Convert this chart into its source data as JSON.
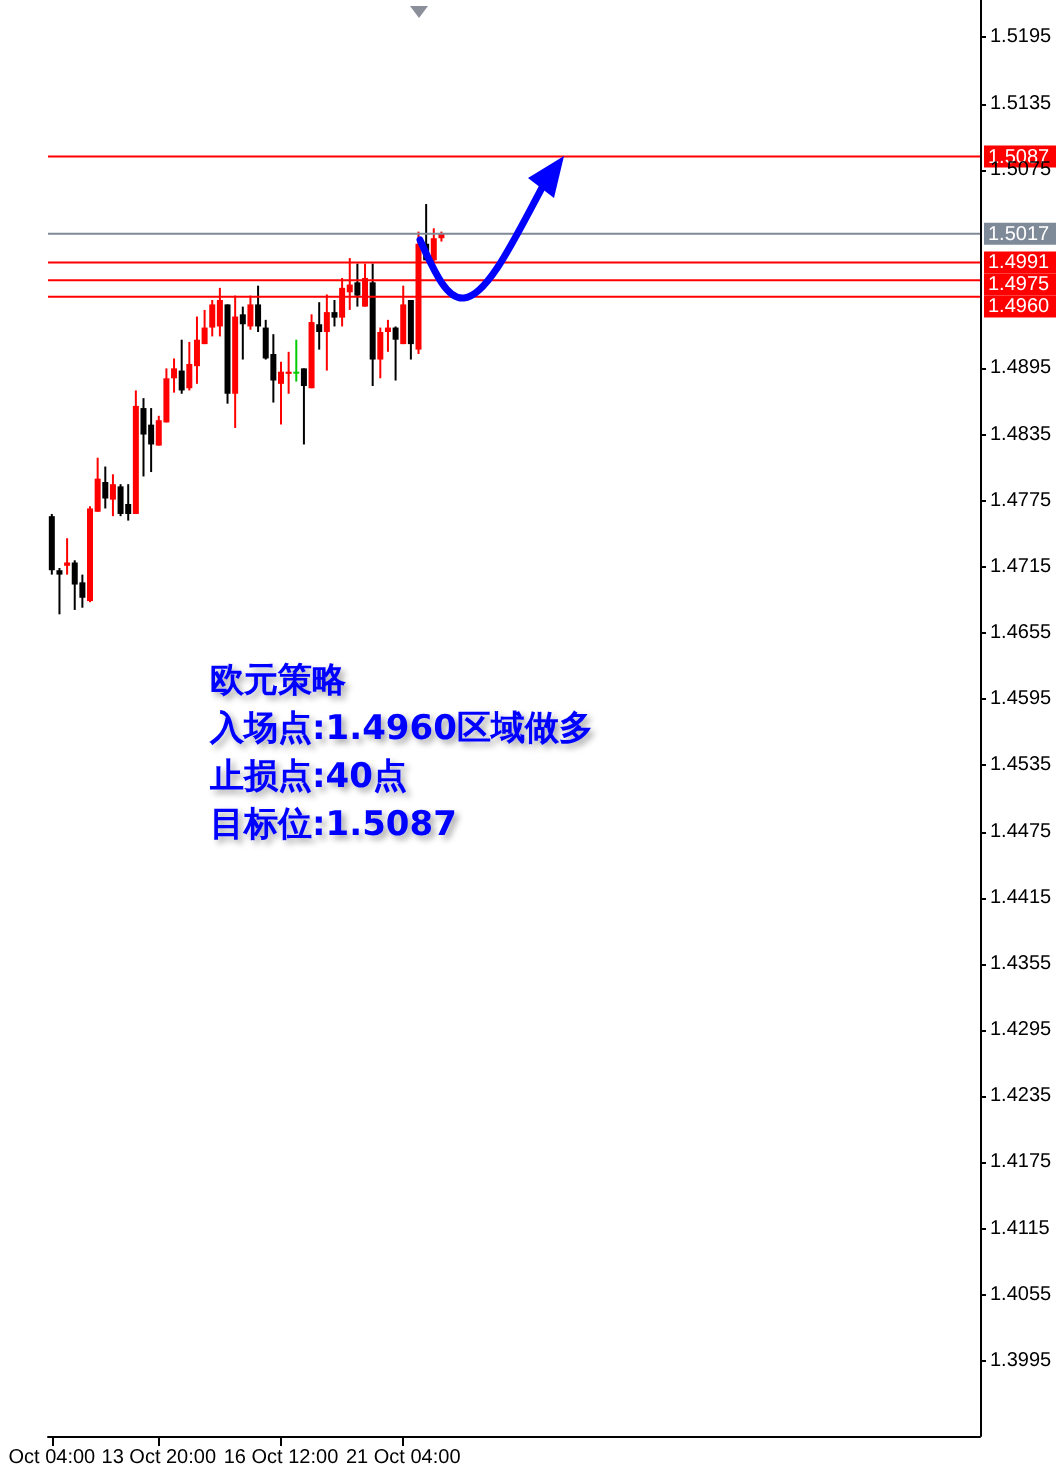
{
  "chart_data": {
    "type": "candlestick",
    "categories": [
      "Oct 04:00",
      null,
      null,
      null,
      null,
      null,
      null,
      null,
      null,
      null,
      null,
      null,
      null,
      null,
      "13 Oct 20:00",
      null,
      null,
      null,
      null,
      null,
      null,
      null,
      null,
      null,
      null,
      null,
      null,
      null,
      null,
      null,
      "16 Oct 12:00",
      null,
      null,
      null,
      null,
      null,
      null,
      null,
      null,
      null,
      null,
      null,
      null,
      null,
      null,
      null,
      "21 Oct 04:00",
      null,
      null,
      null,
      null,
      null,
      null,
      null,
      null,
      null,
      null,
      null,
      null,
      null,
      null,
      null,
      null,
      null,
      null,
      null,
      null,
      null,
      null,
      null,
      null,
      null,
      null,
      null,
      null,
      null,
      null,
      null,
      null,
      null,
      null,
      null,
      null,
      null,
      null,
      null,
      null,
      null,
      null,
      null,
      null,
      null,
      null,
      null,
      null,
      null,
      null,
      null,
      null,
      null,
      null,
      null,
      null,
      null,
      null,
      null,
      null,
      null,
      null,
      null,
      null,
      null,
      null,
      null,
      null,
      null,
      null,
      null,
      null,
      null,
      null,
      null
    ],
    "ohlc": [
      [
        1.4761,
        1.4763,
        1.4708,
        1.4712
      ],
      [
        1.4712,
        1.4714,
        1.4672,
        1.4708
      ],
      [
        1.4716,
        1.4741,
        1.4708,
        1.4719
      ],
      [
        1.4719,
        1.4721,
        1.4676,
        1.4699
      ],
      [
        1.4701,
        1.4708,
        1.4678,
        1.4687
      ],
      [
        1.4684,
        1.477,
        1.4683,
        1.4768
      ],
      [
        1.4765,
        1.4814,
        1.4765,
        1.4795
      ],
      [
        1.4792,
        1.4806,
        1.4768,
        1.4777
      ],
      [
        1.4776,
        1.4799,
        1.4761,
        1.479
      ],
      [
        1.4788,
        1.479,
        1.4761,
        1.4763
      ],
      [
        1.4772,
        1.479,
        1.4757,
        1.4763
      ],
      [
        1.4763,
        1.4875,
        1.4763,
        1.4861
      ],
      [
        1.4859,
        1.4868,
        1.4797,
        1.4835
      ],
      [
        1.4844,
        1.4859,
        1.4801,
        1.4826
      ],
      [
        1.4825,
        1.4852,
        1.4825,
        1.4848
      ],
      [
        1.4846,
        1.4895,
        1.4846,
        1.4886
      ],
      [
        1.4886,
        1.4904,
        1.4873,
        1.4895
      ],
      [
        1.4893,
        1.4921,
        1.4872,
        1.4875
      ],
      [
        1.4877,
        1.4919,
        1.4875,
        1.4899
      ],
      [
        1.4897,
        1.4942,
        1.4881,
        1.4921
      ],
      [
        1.4917,
        1.4948,
        1.4917,
        1.4932
      ],
      [
        1.4932,
        1.4957,
        1.4924,
        1.4953
      ],
      [
        1.4933,
        1.4968,
        1.4924,
        1.4957
      ],
      [
        1.4953,
        1.4953,
        1.4863,
        1.4872
      ],
      [
        1.4872,
        1.4961,
        1.4841,
        1.4942
      ],
      [
        1.4944,
        1.4951,
        1.4903,
        1.4935
      ],
      [
        1.4933,
        1.4961,
        1.493,
        1.4953
      ],
      [
        1.4953,
        1.497,
        1.4928,
        1.4933
      ],
      [
        1.4932,
        1.4939,
        1.4903,
        1.4904
      ],
      [
        1.4908,
        1.4926,
        1.4864,
        1.4884
      ],
      [
        1.4881,
        1.4901,
        1.4844,
        1.4892
      ],
      [
        1.489,
        1.491,
        1.4872,
        1.4892
      ],
      [
        1.4892,
        1.4921,
        1.4883,
        1.4892
      ],
      [
        1.4895,
        1.4895,
        1.4826,
        1.4879
      ],
      [
        1.4877,
        1.4944,
        1.4877,
        1.4937
      ],
      [
        1.4935,
        1.4955,
        1.4912,
        1.4928
      ],
      [
        1.4928,
        1.4962,
        1.4893,
        1.4946
      ],
      [
        1.4946,
        1.4957,
        1.4933,
        1.4941
      ],
      [
        1.4941,
        1.4977,
        1.4933,
        1.4968
      ],
      [
        1.4964,
        1.4995,
        1.4948,
        1.4971
      ],
      [
        1.4973,
        1.499,
        1.4951,
        1.4961
      ],
      [
        1.4951,
        1.499,
        1.4951,
        1.4977
      ],
      [
        1.4973,
        1.499,
        1.4879,
        1.4903
      ],
      [
        1.4903,
        1.4932,
        1.4886,
        1.4928
      ],
      [
        1.4928,
        1.4939,
        1.491,
        1.4932
      ],
      [
        1.4932,
        1.4933,
        1.4884,
        1.4921
      ],
      [
        1.4917,
        1.497,
        1.4917,
        1.4953
      ],
      [
        1.4957,
        1.4957,
        1.4903,
        1.4917
      ],
      [
        1.4912,
        1.5019,
        1.4908,
        1.5008
      ],
      [
        1.5008,
        1.5044,
        1.4993,
        1.4993
      ],
      [
        1.4993,
        1.5022,
        1.499,
        1.5013
      ],
      [
        1.5013,
        1.5019,
        1.501,
        1.5017
      ],
      null,
      null,
      null,
      null,
      null,
      null,
      null,
      null,
      null,
      null,
      null,
      null,
      null,
      null,
      null,
      null,
      null,
      null,
      null,
      null,
      null,
      null,
      null,
      null,
      null,
      null,
      null,
      null,
      null,
      null,
      null,
      null,
      null,
      null,
      null,
      null,
      null,
      null,
      null,
      null,
      null,
      null,
      null,
      null,
      null,
      null,
      null,
      null,
      null,
      null,
      null,
      null,
      null,
      null,
      null,
      null,
      null,
      null,
      null,
      null,
      null,
      null,
      null,
      null,
      null,
      null,
      null,
      null,
      null,
      null
    ],
    "colors": [
      "#000000",
      "#000000",
      "#ff0000",
      "#000000",
      "#000000",
      "#ff0000",
      "#ff0000",
      "#000000",
      "#ff0000",
      "#000000",
      "#000000",
      "#ff0000",
      "#000000",
      "#000000",
      "#ff0000",
      "#ff0000",
      "#ff0000",
      "#000000",
      "#ff0000",
      "#ff0000",
      "#ff0000",
      "#ff0000",
      "#ff0000",
      "#000000",
      "#ff0000",
      "#000000",
      "#ff0000",
      "#000000",
      "#000000",
      "#000000",
      "#ff0000",
      "#ff0000",
      "#00cc00",
      "#000000",
      "#ff0000",
      "#000000",
      "#ff0000",
      "#000000",
      "#ff0000",
      "#ff0000",
      "#000000",
      "#ff0000",
      "#000000",
      "#ff0000",
      "#ff0000",
      "#000000",
      "#ff0000",
      "#000000",
      "#ff0000",
      "#000000",
      "#ff0000",
      "#ff0000",
      null,
      null,
      null,
      null,
      null,
      null,
      null,
      null,
      null,
      null,
      null,
      null,
      null,
      null,
      null,
      null,
      null,
      null,
      null,
      null,
      null,
      null,
      null,
      null,
      null,
      null,
      null,
      null,
      null,
      null,
      null,
      null,
      null,
      null,
      null,
      null,
      null,
      null,
      null,
      null,
      null,
      null,
      null,
      null,
      null,
      null,
      null,
      null,
      null,
      null,
      null,
      null,
      null,
      null,
      null,
      null,
      null,
      null,
      null,
      null,
      null,
      null,
      null,
      null,
      null,
      null,
      null,
      null,
      null,
      null
    ],
    "ylim": [
      1.3927,
      1.5229
    ],
    "yticks": [
      1.3995,
      1.4055,
      1.4115,
      1.4175,
      1.4235,
      1.4295,
      1.4355,
      1.4415,
      1.4475,
      1.4535,
      1.4595,
      1.4655,
      1.4715,
      1.4775,
      1.4835,
      1.4895,
      1.5075,
      1.5135,
      1.5195
    ],
    "ref_lines": [
      {
        "axis": "y",
        "value": 1.5087,
        "label": "1.5087",
        "color": "#ff0000"
      },
      {
        "axis": "y",
        "value": 1.5017,
        "label": "1.5017",
        "color": "#7f8a99"
      },
      {
        "axis": "y",
        "value": 1.4991,
        "label": "1.4991",
        "color": "#ff0000"
      },
      {
        "axis": "y",
        "value": 1.4975,
        "label": "1.4975",
        "color": "#ff0000"
      },
      {
        "axis": "y",
        "value": 1.496,
        "label": "1.4960",
        "color": "#ff0000"
      }
    ],
    "annotations": [
      "欧元策略",
      "入场点:1.4960区域做多",
      "止损点:40点",
      "目标位:1.5087"
    ],
    "grid": false
  }
}
